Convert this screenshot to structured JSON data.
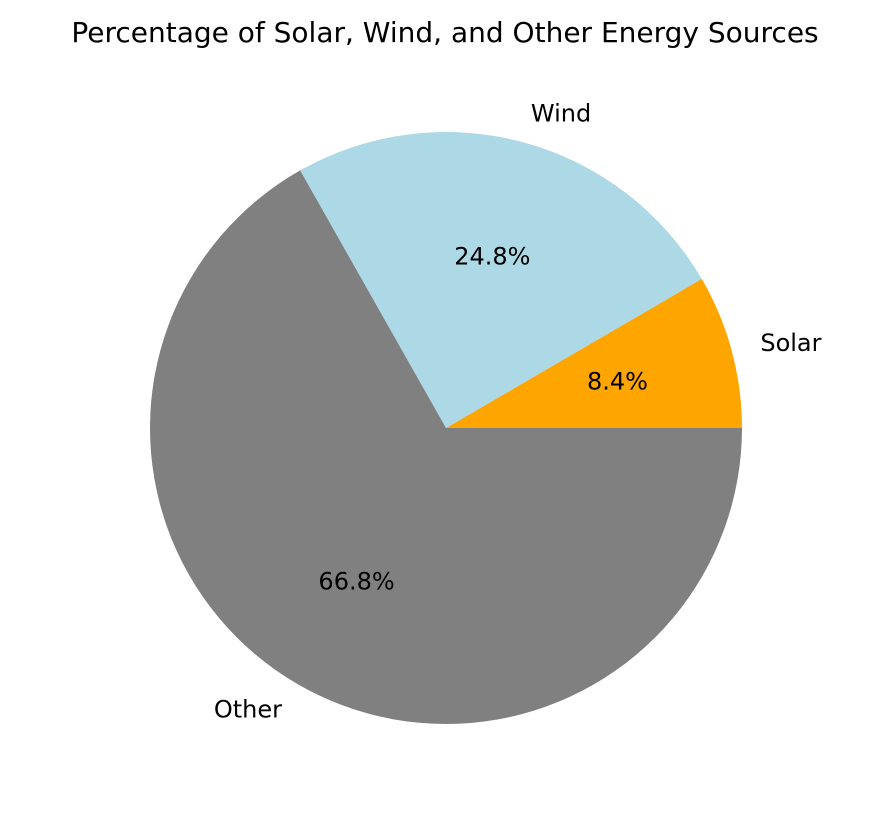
{
  "chart_data": {
    "type": "pie",
    "title": "Percentage of Solar, Wind, and Other Energy Sources",
    "slices": [
      {
        "label": "Solar",
        "value": 8.4,
        "pct_text": "8.4%",
        "color": "#ffa500"
      },
      {
        "label": "Wind",
        "value": 24.8,
        "pct_text": "24.8%",
        "color": "#add8e6"
      },
      {
        "label": "Other",
        "value": 66.8,
        "pct_text": "66.8%",
        "color": "#808080"
      }
    ],
    "start_angle_deg": 0,
    "direction": "counterclockwise"
  }
}
